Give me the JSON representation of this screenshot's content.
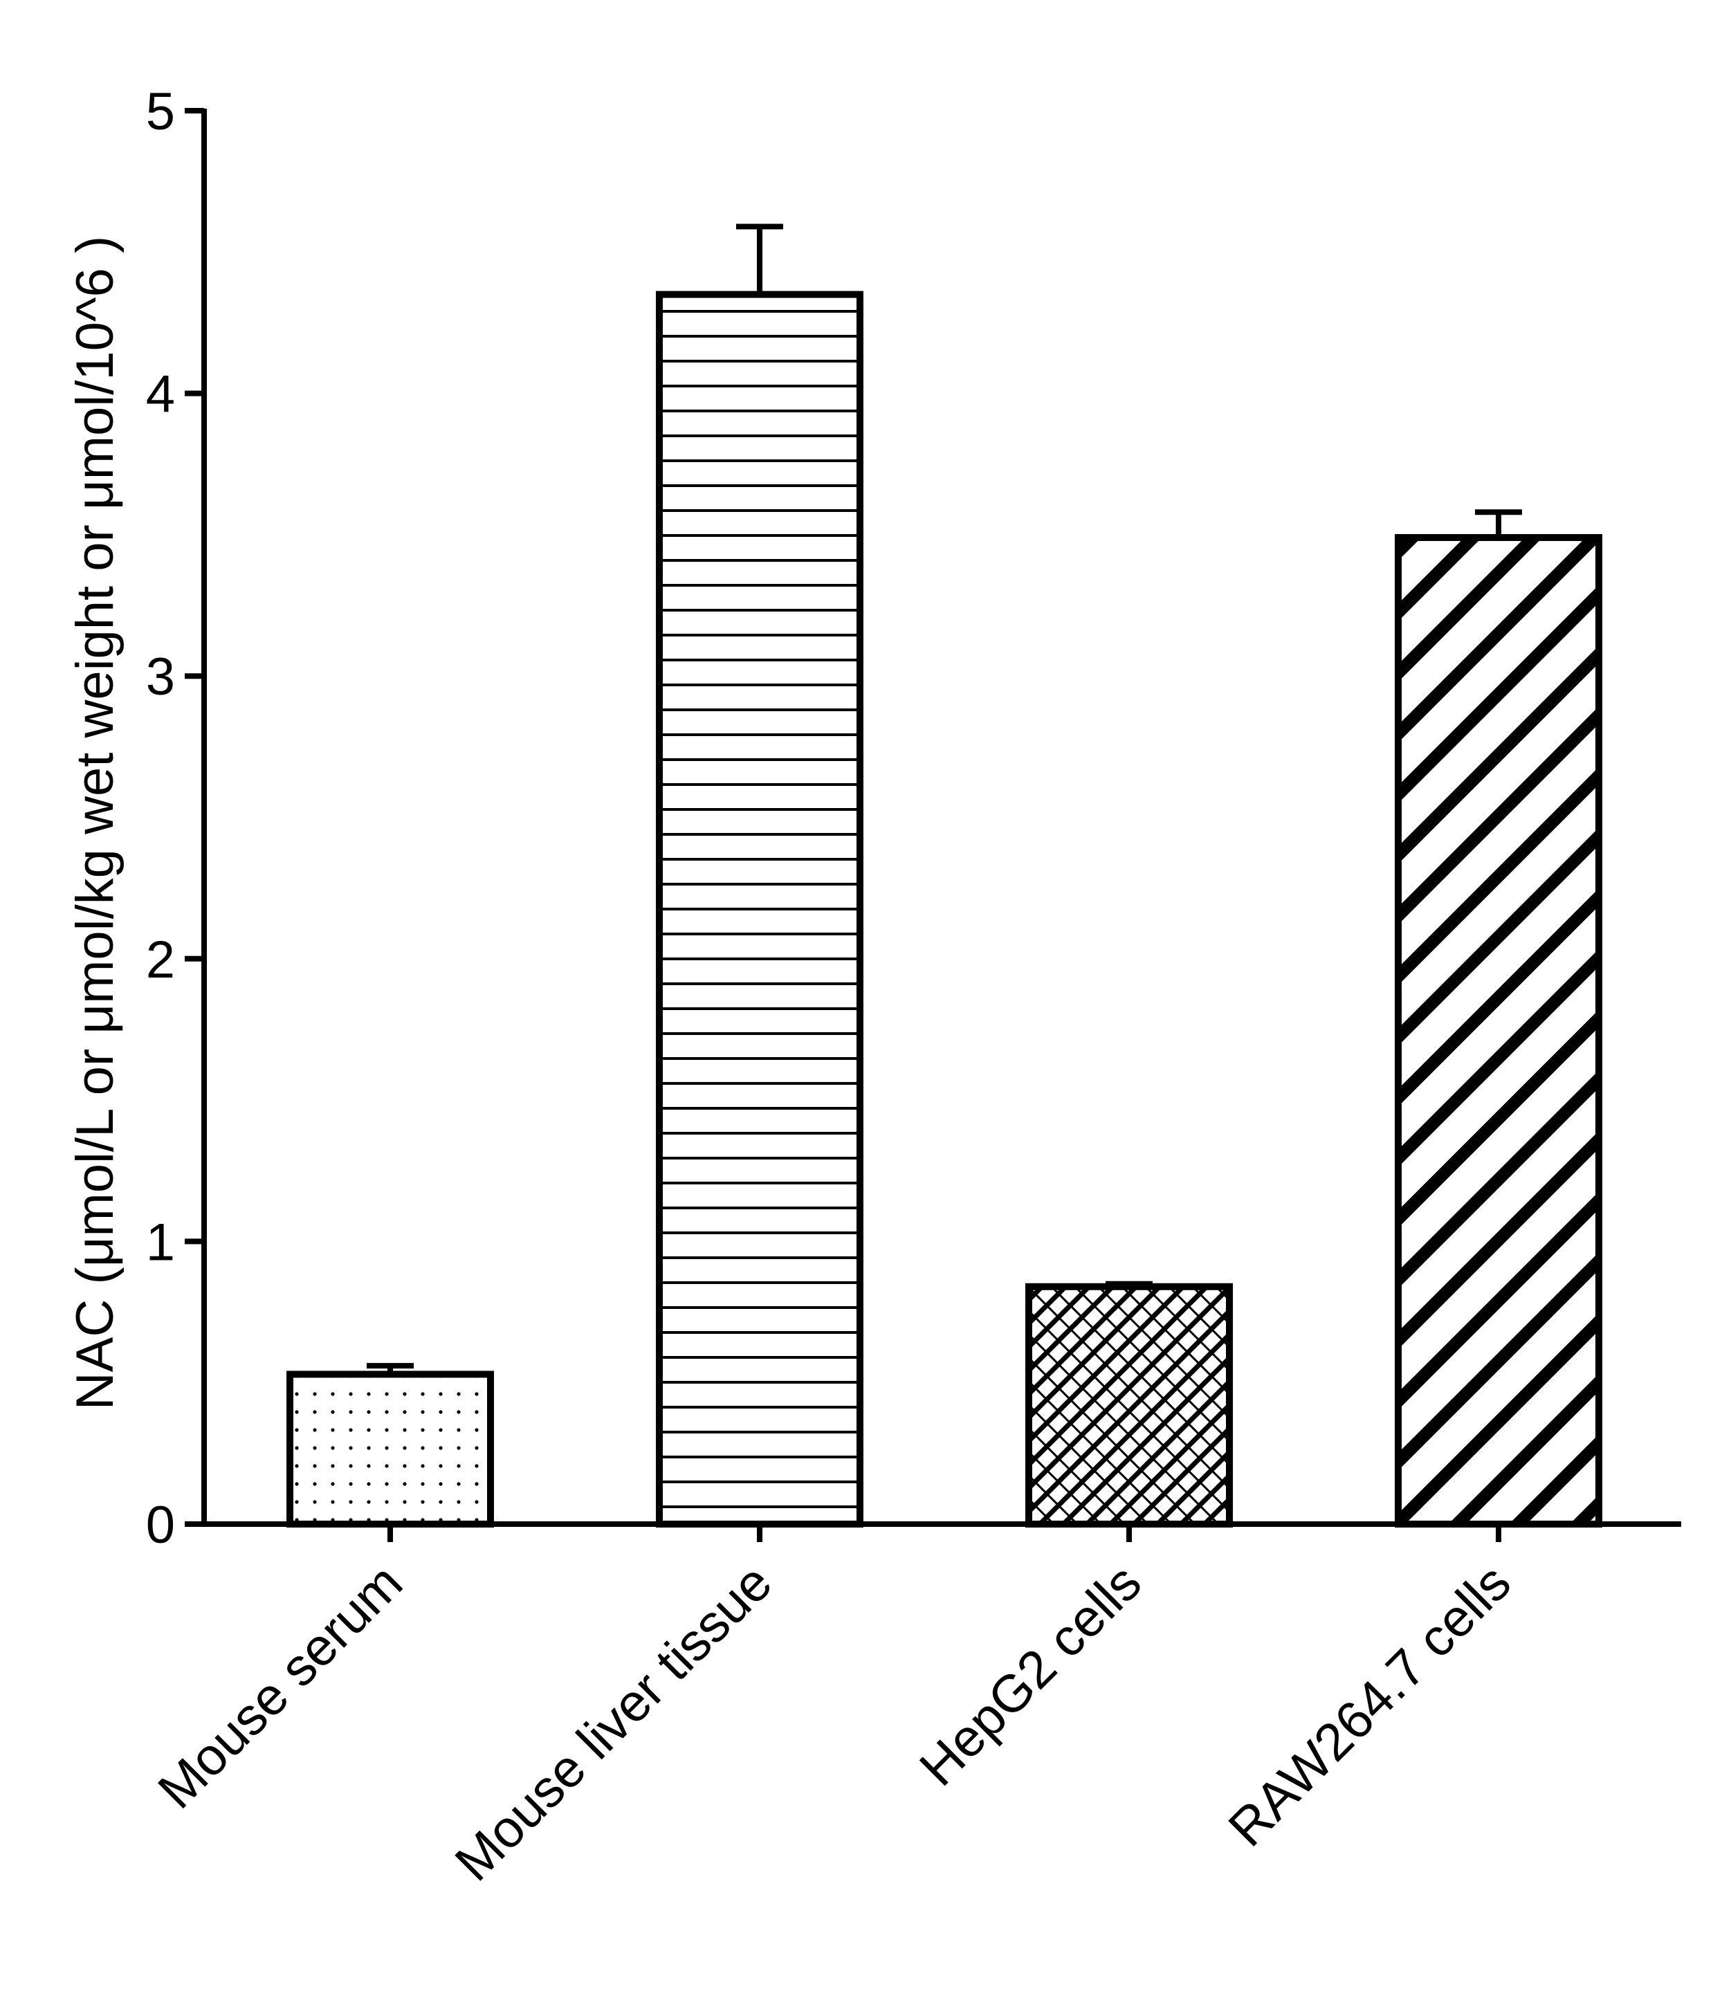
{
  "chart_data": {
    "type": "bar",
    "title": "",
    "xlabel": "",
    "ylabel": "NAC (μmol/L or μmol/kg wet weight or μmol/10^6 )",
    "ylim": [
      0,
      5
    ],
    "yticks": [
      0,
      1,
      2,
      3,
      4,
      5
    ],
    "ytick_labels": [
      "0",
      "1",
      "2",
      "3",
      "4",
      "5"
    ],
    "grid": false,
    "legend": "none",
    "categories": [
      "Mouse serum",
      "Mouse liver tissue",
      "HepG2 cells",
      "RAW264.7 cells"
    ],
    "values": [
      0.53,
      4.35,
      0.84,
      3.49
    ],
    "error_upper": [
      0.03,
      0.24,
      0.01,
      0.09
    ],
    "patterns": [
      "dots",
      "horizontal-lines",
      "crosshatch",
      "diagonal-stripes"
    ],
    "colors": {
      "stroke": "#000000",
      "fill": "#ffffff"
    }
  }
}
